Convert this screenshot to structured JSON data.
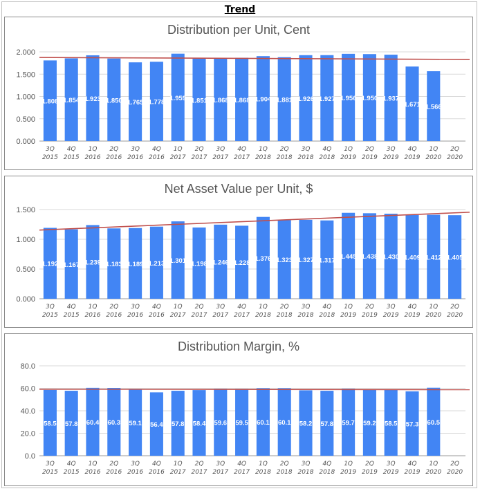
{
  "page": {
    "title": "Trend"
  },
  "colors": {
    "bar": "#4285f4",
    "trend": "#c0504d",
    "grid": "#d9d9d9",
    "axis_text": "#555555",
    "title_text": "#555555",
    "label_text": "#ffffff"
  },
  "chart_data": [
    {
      "type": "bar",
      "title": "Distribution per Unit, Cent",
      "quarters": [
        "3Q",
        "4Q",
        "1Q",
        "2Q",
        "3Q",
        "4Q",
        "1Q",
        "2Q",
        "3Q",
        "4Q",
        "1Q",
        "2Q",
        "3Q",
        "4Q",
        "1Q",
        "2Q",
        "3Q",
        "4Q",
        "1Q",
        "2Q"
      ],
      "years": [
        "2015",
        "2015",
        "2016",
        "2016",
        "2016",
        "2016",
        "2017",
        "2017",
        "2017",
        "2017",
        "2018",
        "2018",
        "2018",
        "2018",
        "2019",
        "2019",
        "2019",
        "2019",
        "2020",
        "2020"
      ],
      "values": [
        1.808,
        1.854,
        1.923,
        1.85,
        1.765,
        1.778,
        1.959,
        1.851,
        1.868,
        1.868,
        1.904,
        1.881,
        1.926,
        1.927,
        1.956,
        1.95,
        1.937,
        1.671,
        1.566,
        null
      ],
      "labels": [
        "1.808",
        "1.854",
        "1.923",
        "1.850",
        "1.765",
        "1.778",
        "1.959",
        "1.851",
        "1.868",
        "1.868",
        "1.904",
        "1.881",
        "1.926",
        "1.927",
        "1.956",
        "1.950",
        "1.937",
        "1.671",
        "1.566",
        ""
      ],
      "yticks": [
        "0.000",
        "0.500",
        "1.000",
        "1.500",
        "2.000"
      ],
      "ylim": [
        0,
        2
      ],
      "trendline": [
        1.875,
        1.83
      ]
    },
    {
      "type": "bar",
      "title": "Net Asset Value per Unit, $",
      "quarters": [
        "3Q",
        "4Q",
        "1Q",
        "2Q",
        "3Q",
        "4Q",
        "1Q",
        "2Q",
        "3Q",
        "4Q",
        "1Q",
        "2Q",
        "3Q",
        "4Q",
        "1Q",
        "2Q",
        "3Q",
        "4Q",
        "1Q",
        "2Q"
      ],
      "years": [
        "2015",
        "2015",
        "2016",
        "2016",
        "2016",
        "2016",
        "2017",
        "2017",
        "2017",
        "2017",
        "2018",
        "2018",
        "2018",
        "2018",
        "2019",
        "2019",
        "2019",
        "2019",
        "2020",
        "2020"
      ],
      "values": [
        1.192,
        1.167,
        1.239,
        1.183,
        1.189,
        1.213,
        1.301,
        1.198,
        1.246,
        1.228,
        1.376,
        1.323,
        1.327,
        1.317,
        1.445,
        1.438,
        1.43,
        1.409,
        1.412,
        1.405
      ],
      "labels": [
        "1.192",
        "1.167",
        "1.239",
        "1.183",
        "1.189",
        "1.213",
        "1.301",
        "1.198",
        "1.246",
        "1.228",
        "1.376",
        "1.323",
        "1.327",
        "1.317",
        "1.445",
        "1.438",
        "1.430",
        "1.409",
        "1.412",
        "1.405"
      ],
      "yticks": [
        "0.000",
        "0.500",
        "1.000",
        "1.500"
      ],
      "ylim": [
        0,
        1.5
      ],
      "trendline": [
        1.155,
        1.455
      ]
    },
    {
      "type": "bar",
      "title": "Distribution Margin, %",
      "quarters": [
        "3Q",
        "4Q",
        "1Q",
        "2Q",
        "3Q",
        "4Q",
        "1Q",
        "2Q",
        "3Q",
        "4Q",
        "1Q",
        "2Q",
        "3Q",
        "4Q",
        "1Q",
        "2Q",
        "3Q",
        "4Q",
        "1Q",
        "2Q"
      ],
      "years": [
        "2015",
        "2015",
        "2016",
        "2016",
        "2016",
        "2016",
        "2017",
        "2017",
        "2017",
        "2017",
        "2018",
        "2018",
        "2018",
        "2018",
        "2019",
        "2019",
        "2019",
        "2019",
        "2020",
        "2020"
      ],
      "values": [
        58.5,
        57.8,
        60.4,
        60.3,
        59.1,
        56.4,
        57.8,
        58.4,
        59.6,
        59.5,
        60.1,
        60.1,
        58.2,
        57.8,
        59.7,
        59.2,
        58.5,
        57.3,
        60.5,
        null
      ],
      "labels": [
        "58.5",
        "57.8",
        "60.4",
        "60.3",
        "59.1",
        "56.4",
        "57.8",
        "58.4",
        "59.6",
        "59.5",
        "60.1",
        "60.1",
        "58.2",
        "57.8",
        "59.7",
        "59.2",
        "58.5",
        "57.3",
        "60.5",
        ""
      ],
      "yticks": [
        "0.0",
        "20.0",
        "40.0",
        "60.0",
        "80.0"
      ],
      "ylim": [
        0,
        80
      ],
      "trendline": [
        59.2,
        58.8
      ]
    }
  ]
}
